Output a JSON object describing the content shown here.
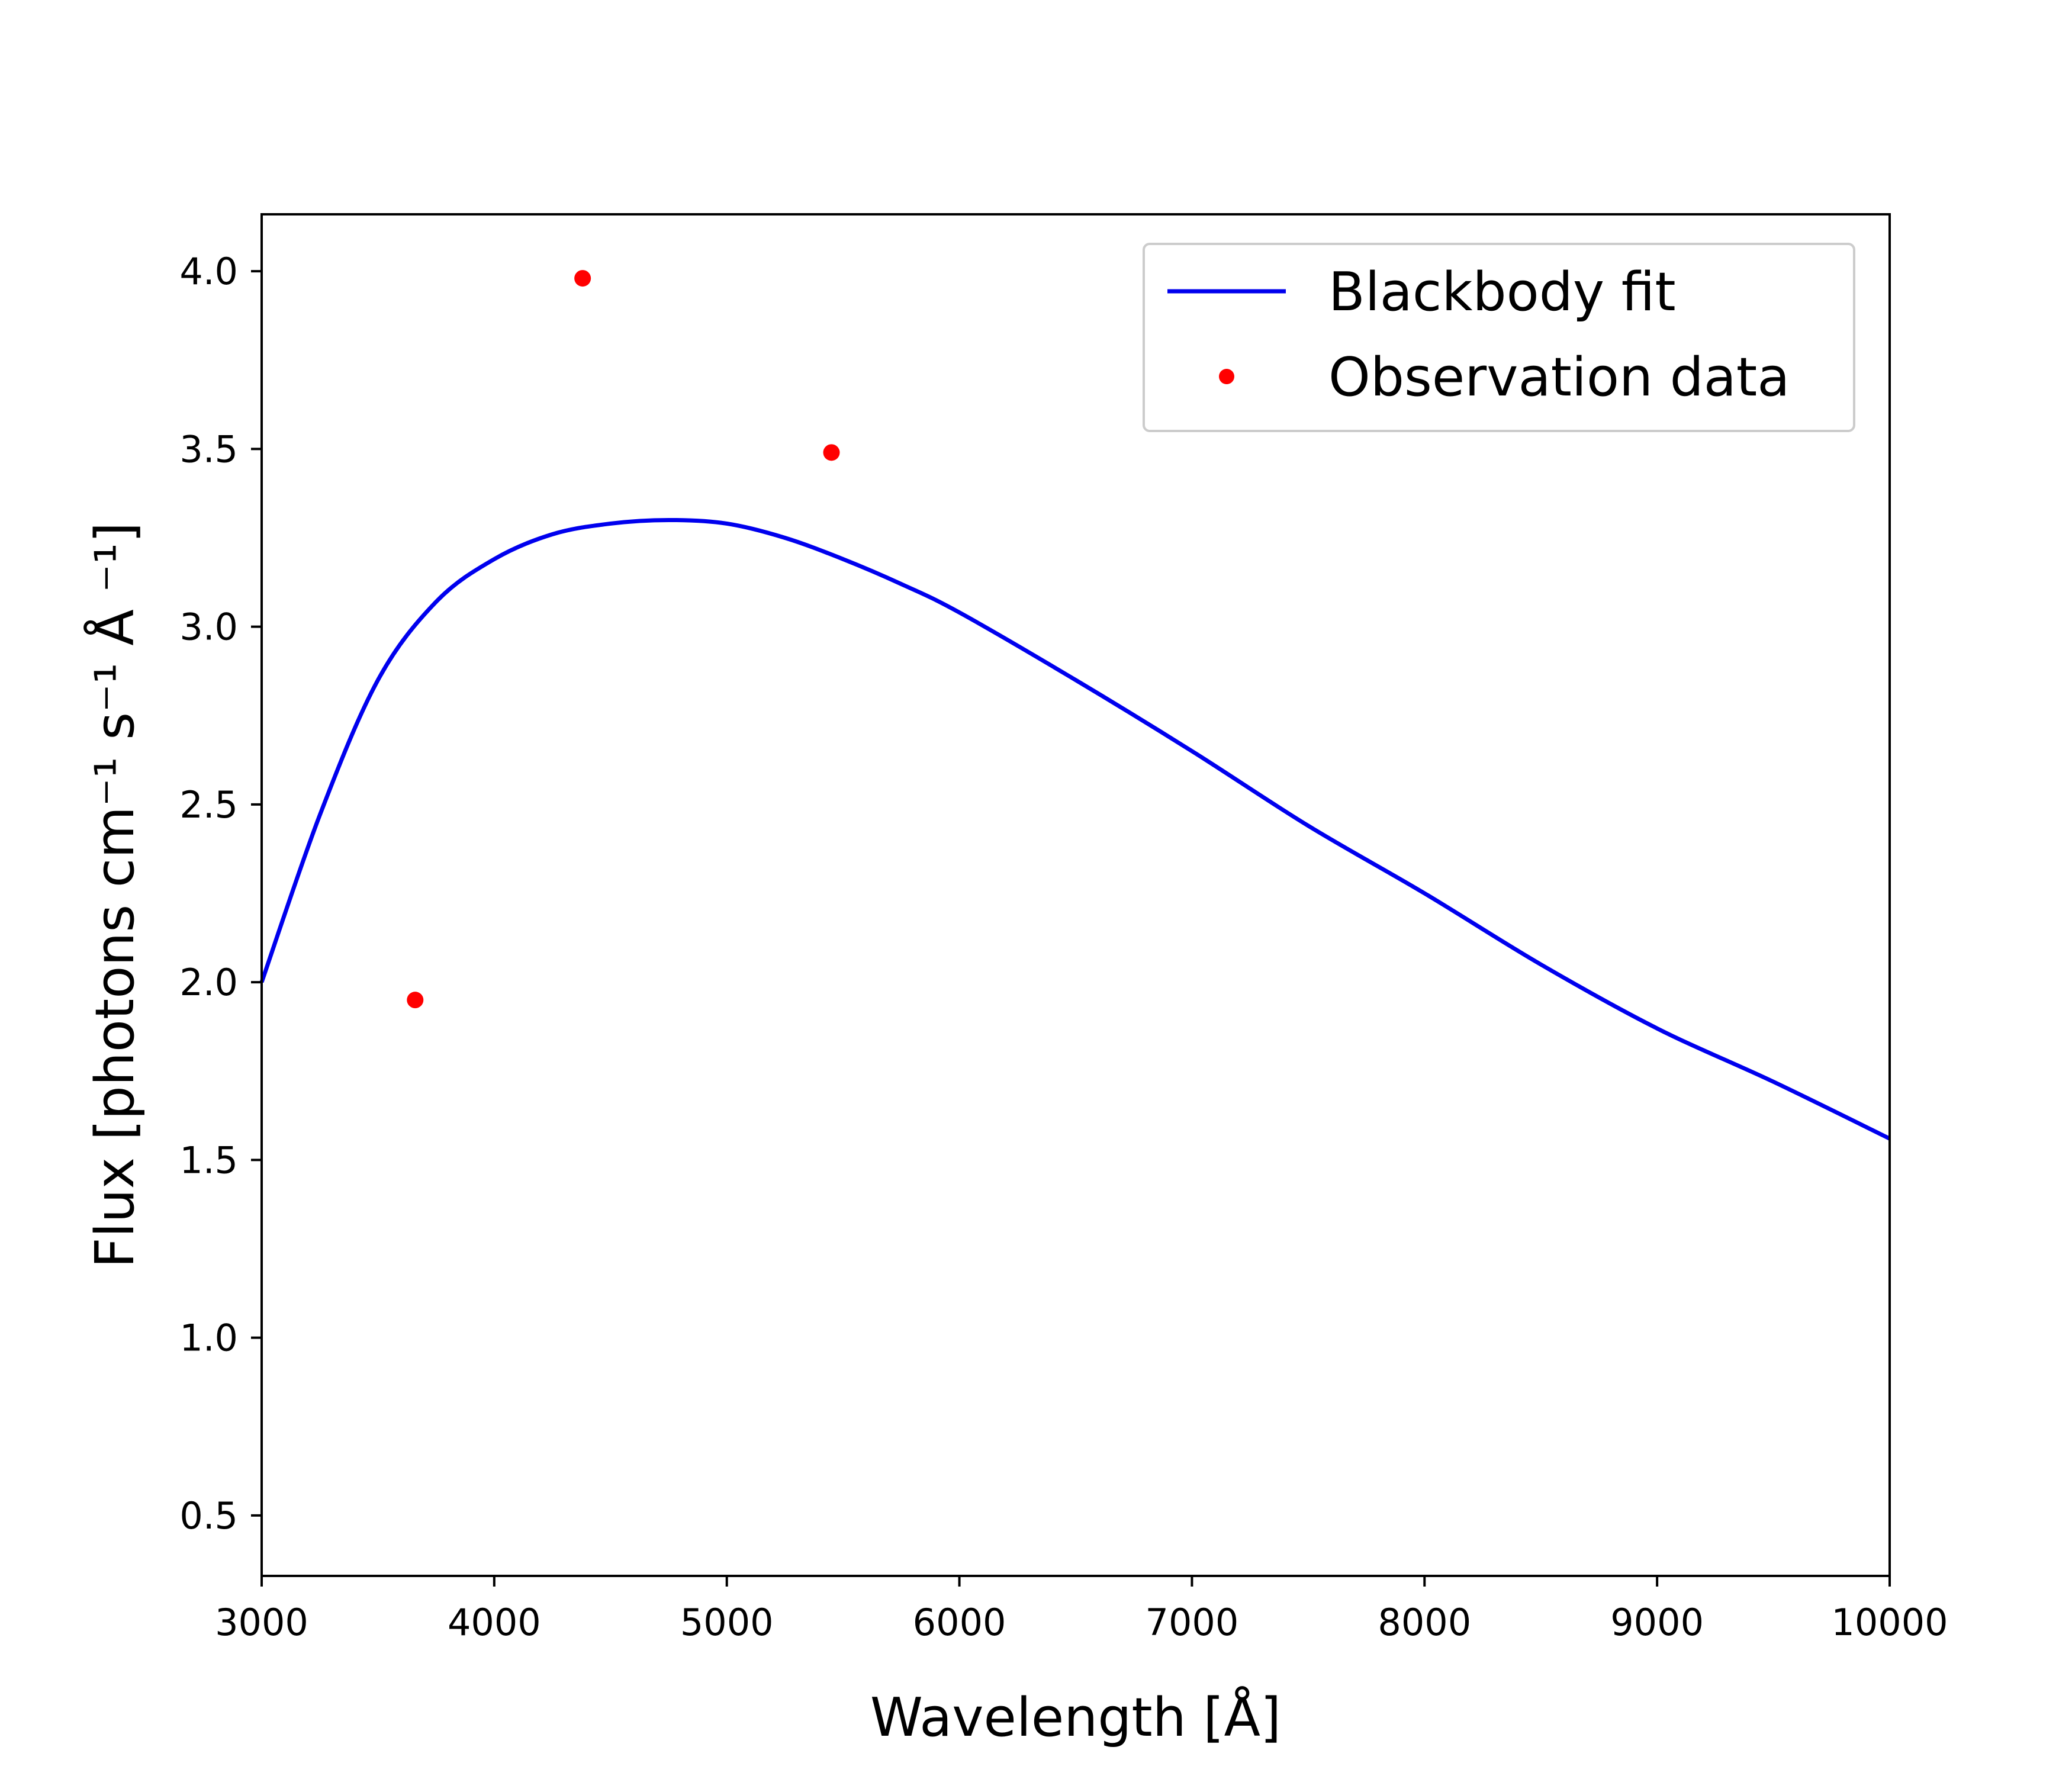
{
  "chart_data": {
    "type": "line",
    "title": "",
    "xlabel": "Wavelength [Å]",
    "ylabel": "Flux [photons cm⁻¹ s⁻¹ Å ⁻¹]",
    "xlim": [
      3000,
      10000
    ],
    "ylim": [
      0.33,
      4.16
    ],
    "x_ticks": [
      3000,
      4000,
      5000,
      6000,
      7000,
      8000,
      9000,
      10000
    ],
    "x_tick_labels": [
      "3000",
      "4000",
      "5000",
      "6000",
      "7000",
      "8000",
      "9000",
      "10000"
    ],
    "y_ticks": [
      0.5,
      1.0,
      1.5,
      2.0,
      2.5,
      3.0,
      3.5,
      4.0
    ],
    "y_tick_labels": [
      "0.5",
      "1.0",
      "1.5",
      "2.0",
      "2.5",
      "3.0",
      "3.5",
      "4.0"
    ],
    "grid": false,
    "legend_position": "top-right",
    "series": [
      {
        "name": "Blackbody fit",
        "kind": "line",
        "color": "#0000ee",
        "x": [
          3000,
          3250,
          3500,
          3750,
          4000,
          4250,
          4500,
          4750,
          5000,
          5250,
          5500,
          5750,
          6000,
          6500,
          7000,
          7500,
          8000,
          8500,
          9000,
          9500,
          10000
        ],
        "y": [
          2.0,
          2.47,
          2.85,
          3.07,
          3.19,
          3.26,
          3.29,
          3.3,
          3.29,
          3.25,
          3.19,
          3.12,
          3.04,
          2.85,
          2.65,
          2.44,
          2.25,
          2.05,
          1.87,
          1.72,
          1.56
        ]
      },
      {
        "name": "Observation data",
        "kind": "scatter",
        "color": "#ff0000",
        "x": [
          3660,
          4380,
          5450
        ],
        "y": [
          1.95,
          3.98,
          3.49
        ]
      }
    ]
  }
}
